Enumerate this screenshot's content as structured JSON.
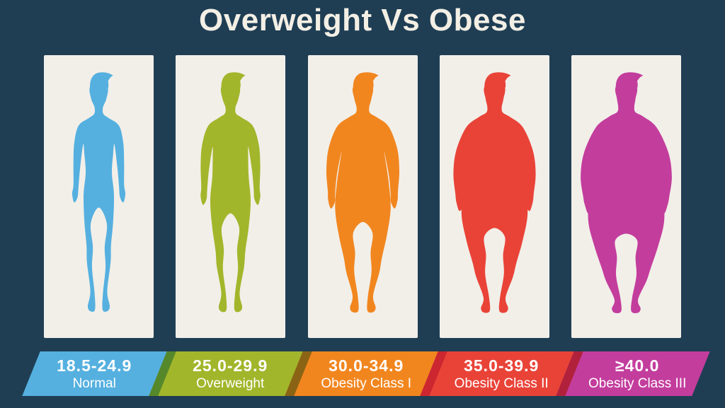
{
  "title": "Overweight Vs Obese",
  "theme": {
    "background": "#1f3e54",
    "card_background": "#f2efe9",
    "title_color": "#f3efe5",
    "banner_text_color": "#ffffff"
  },
  "categories": [
    {
      "range": "18.5-24.9",
      "label": "Normal",
      "color": "#55b0df",
      "stripe_color": null,
      "figure": "slim-body-silhouette"
    },
    {
      "range": "25.0-29.9",
      "label": "Overweight",
      "color": "#a2b62b",
      "stripe_color": "#55882a",
      "figure": "overweight-body-silhouette"
    },
    {
      "range": "30.0-34.9",
      "label": "Obesity Class I",
      "color": "#f1861f",
      "stripe_color": "#8a6414",
      "figure": "obese-class1-body-silhouette"
    },
    {
      "range": "35.0-39.9",
      "label": "Obesity Class II",
      "color": "#e94338",
      "stripe_color": "#cc2630",
      "figure": "obese-class2-body-silhouette"
    },
    {
      "range": "≥40.0",
      "label": "Obesity Class III",
      "color": "#c33d9d",
      "stripe_color": "#b2213b",
      "figure": "obese-class3-body-silhouette"
    }
  ]
}
